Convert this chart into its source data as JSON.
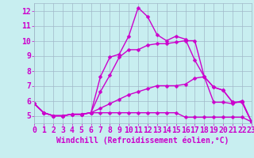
{
  "background_color": "#c8eef0",
  "grid_color": "#a0b8c8",
  "line_color": "#cc00cc",
  "marker_color": "#cc00cc",
  "xlabel": "Windchill (Refroidissement éolien,°C)",
  "xlim": [
    0,
    23
  ],
  "ylim": [
    4.5,
    12.5
  ],
  "yticks": [
    5,
    6,
    7,
    8,
    9,
    10,
    11,
    12
  ],
  "xticks": [
    0,
    1,
    2,
    3,
    4,
    5,
    6,
    7,
    8,
    9,
    10,
    11,
    12,
    13,
    14,
    15,
    16,
    17,
    18,
    19,
    20,
    21,
    22,
    23
  ],
  "series": [
    {
      "x": [
        0,
        1,
        2,
        3,
        4,
        5,
        6,
        7,
        8,
        9,
        10,
        11,
        12,
        13,
        14,
        15,
        16,
        17,
        18,
        19,
        20,
        21,
        22,
        23
      ],
      "y": [
        5.8,
        5.2,
        5.0,
        5.0,
        5.1,
        5.1,
        5.2,
        7.6,
        8.9,
        9.1,
        10.3,
        12.2,
        11.6,
        10.4,
        10.0,
        10.3,
        10.1,
        8.7,
        7.6,
        5.9,
        5.9,
        5.8,
        6.0,
        4.6
      ]
    },
    {
      "x": [
        0,
        1,
        2,
        3,
        4,
        5,
        6,
        7,
        8,
        9,
        10,
        11,
        12,
        13,
        14,
        15,
        16,
        17,
        18,
        19,
        20,
        21,
        22,
        23
      ],
      "y": [
        5.8,
        5.2,
        5.0,
        5.0,
        5.1,
        5.1,
        5.2,
        6.6,
        7.7,
        8.9,
        9.4,
        9.4,
        9.7,
        9.8,
        9.8,
        9.9,
        10.0,
        10.0,
        7.6,
        6.9,
        6.7,
        5.9,
        5.9,
        4.6
      ]
    },
    {
      "x": [
        0,
        1,
        2,
        3,
        4,
        5,
        6,
        7,
        8,
        9,
        10,
        11,
        12,
        13,
        14,
        15,
        16,
        17,
        18,
        19,
        20,
        21,
        22,
        23
      ],
      "y": [
        5.8,
        5.2,
        5.0,
        5.0,
        5.1,
        5.1,
        5.2,
        5.2,
        5.2,
        5.2,
        5.2,
        5.2,
        5.2,
        5.2,
        5.2,
        5.2,
        4.9,
        4.9,
        4.9,
        4.9,
        4.9,
        4.9,
        4.9,
        4.6
      ]
    },
    {
      "x": [
        0,
        1,
        2,
        3,
        4,
        5,
        6,
        7,
        8,
        9,
        10,
        11,
        12,
        13,
        14,
        15,
        16,
        17,
        18,
        19,
        20,
        21,
        22,
        23
      ],
      "y": [
        5.8,
        5.2,
        5.0,
        5.0,
        5.1,
        5.1,
        5.2,
        5.5,
        5.8,
        6.1,
        6.4,
        6.6,
        6.8,
        7.0,
        7.0,
        7.0,
        7.1,
        7.5,
        7.6,
        6.9,
        6.7,
        5.9,
        5.9,
        4.6
      ]
    }
  ],
  "xlabel_fontsize": 7,
  "tick_fontsize": 7,
  "line_width": 1.0,
  "marker_size": 2.5
}
